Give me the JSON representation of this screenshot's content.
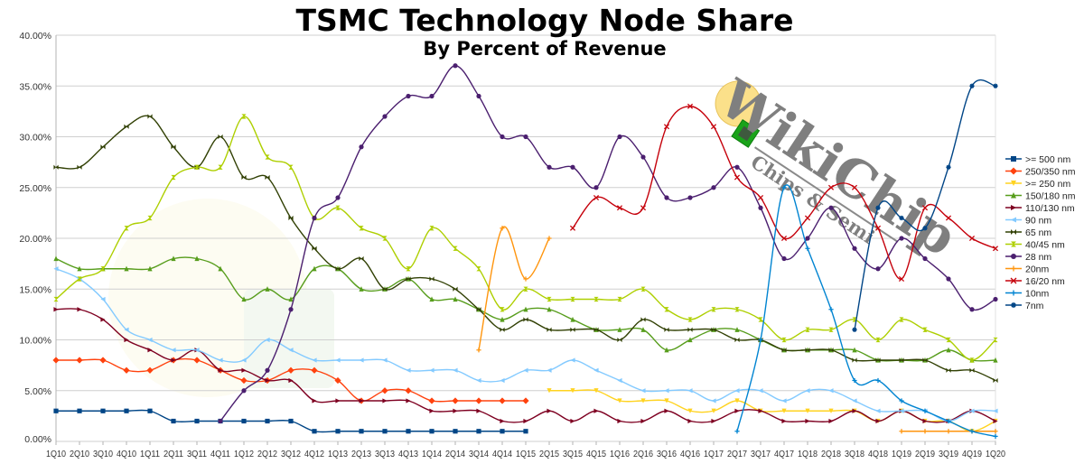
{
  "chart_data": {
    "type": "line",
    "title": "TSMC Technology Node Share",
    "subtitle": "By Percent of Revenue",
    "xlabel": "",
    "ylabel": "",
    "ylim": [
      0,
      40
    ],
    "y_ticks": [
      "0.00%",
      "5.00%",
      "10.00%",
      "15.00%",
      "20.00%",
      "25.00%",
      "30.00%",
      "35.00%",
      "40.00%"
    ],
    "grid": true,
    "smooth": true,
    "legend_position": "right",
    "categories": [
      "1Q10",
      "2Q10",
      "3Q10",
      "4Q10",
      "1Q11",
      "2Q11",
      "3Q11",
      "4Q11",
      "1Q12",
      "2Q12",
      "3Q12",
      "4Q12",
      "1Q13",
      "2Q13",
      "3Q13",
      "4Q13",
      "1Q14",
      "2Q14",
      "3Q14",
      "4Q14",
      "1Q15",
      "2Q15",
      "3Q15",
      "4Q15",
      "1Q16",
      "2Q16",
      "3Q16",
      "4Q16",
      "1Q17",
      "2Q17",
      "3Q17",
      "4Q17",
      "1Q18",
      "2Q18",
      "3Q18",
      "4Q18",
      "1Q19",
      "2Q19",
      "3Q19",
      "4Q19",
      "1Q20"
    ],
    "series": [
      {
        "name": ">= 500 nm",
        "color": "#004586",
        "marker": "square",
        "values": [
          3,
          3,
          3,
          3,
          3,
          2,
          2,
          2,
          2,
          2,
          2,
          1,
          1,
          1,
          1,
          1,
          1,
          1,
          1,
          1,
          1,
          null,
          null,
          null,
          null,
          null,
          null,
          null,
          null,
          null,
          null,
          null,
          null,
          null,
          null,
          null,
          null,
          null,
          null,
          null,
          null
        ]
      },
      {
        "name": "250/350 nm",
        "color": "#ff420e",
        "marker": "diamond",
        "values": [
          8,
          8,
          8,
          7,
          7,
          8,
          8,
          7,
          6,
          6,
          7,
          7,
          6,
          4,
          5,
          5,
          4,
          4,
          4,
          4,
          4,
          null,
          null,
          null,
          null,
          null,
          null,
          null,
          null,
          null,
          null,
          null,
          null,
          null,
          null,
          null,
          null,
          null,
          null,
          null,
          null
        ]
      },
      {
        "name": ">= 250 nm",
        "color": "#ffd320",
        "marker": "triangle-down",
        "values": [
          null,
          null,
          null,
          null,
          null,
          null,
          null,
          null,
          null,
          null,
          null,
          null,
          null,
          null,
          null,
          null,
          null,
          null,
          null,
          null,
          null,
          5,
          5,
          5,
          4,
          4,
          4,
          3,
          3,
          4,
          3,
          3,
          3,
          3,
          3,
          2,
          3,
          2,
          2,
          1,
          2
        ]
      },
      {
        "name": "150/180 nm",
        "color": "#579d1c",
        "marker": "triangle-up",
        "values": [
          18,
          17,
          17,
          17,
          17,
          18,
          18,
          17,
          14,
          15,
          14,
          17,
          17,
          15,
          15,
          16,
          14,
          14,
          13,
          12,
          13,
          13,
          12,
          11,
          11,
          11,
          9,
          10,
          11,
          11,
          10,
          9,
          9,
          9,
          9,
          8,
          8,
          8,
          9,
          8,
          8
        ]
      },
      {
        "name": "110/130 nm",
        "color": "#7e0021",
        "marker": "triangle-right",
        "values": [
          13,
          13,
          12,
          10,
          9,
          8,
          9,
          7,
          7,
          6,
          6,
          4,
          4,
          4,
          4,
          4,
          3,
          3,
          3,
          2,
          2,
          3,
          2,
          3,
          2,
          2,
          3,
          2,
          2,
          3,
          3,
          2,
          2,
          2,
          3,
          2,
          3,
          2,
          2,
          3,
          2
        ]
      },
      {
        "name": "90 nm",
        "color": "#83caff",
        "marker": "triangle-left",
        "values": [
          17,
          16,
          14,
          11,
          10,
          9,
          9,
          8,
          8,
          10,
          9,
          8,
          8,
          8,
          8,
          7,
          7,
          7,
          6,
          6,
          7,
          7,
          8,
          7,
          6,
          5,
          5,
          5,
          4,
          5,
          5,
          4,
          5,
          5,
          4,
          3,
          3,
          3,
          2,
          3,
          3
        ]
      },
      {
        "name": "65 nm",
        "color": "#314004",
        "marker": "bowtie",
        "values": [
          27,
          27,
          29,
          31,
          32,
          29,
          27,
          30,
          26,
          26,
          22,
          19,
          17,
          18,
          15,
          16,
          16,
          15,
          13,
          11,
          12,
          11,
          11,
          11,
          10,
          12,
          11,
          11,
          11,
          10,
          10,
          9,
          9,
          9,
          8,
          8,
          8,
          8,
          7,
          7,
          6
        ]
      },
      {
        "name": "40/45 nm",
        "color": "#aecf00",
        "marker": "hourglass",
        "values": [
          14,
          16,
          17,
          21,
          22,
          26,
          27,
          27,
          32,
          28,
          27,
          22,
          23,
          21,
          20,
          17,
          21,
          19,
          17,
          13,
          15,
          14,
          14,
          14,
          14,
          15,
          13,
          12,
          13,
          13,
          12,
          10,
          11,
          11,
          12,
          10,
          12,
          11,
          10,
          8,
          10
        ]
      },
      {
        "name": "28 nm",
        "color": "#4b1f6f",
        "marker": "circle",
        "values": [
          null,
          null,
          null,
          null,
          null,
          null,
          null,
          2,
          5,
          7,
          13,
          22,
          24,
          29,
          32,
          34,
          34,
          37,
          34,
          30,
          30,
          27,
          27,
          25,
          30,
          28,
          24,
          24,
          25,
          27,
          23,
          18,
          20,
          23,
          19,
          17,
          20,
          18,
          16,
          13,
          14
        ]
      },
      {
        "name": "20nm",
        "color": "#ff950e",
        "marker": "plus",
        "values": [
          null,
          null,
          null,
          null,
          null,
          null,
          null,
          null,
          null,
          null,
          null,
          null,
          null,
          null,
          null,
          null,
          null,
          null,
          9,
          21,
          16,
          20,
          null,
          null,
          null,
          null,
          null,
          null,
          null,
          null,
          null,
          null,
          null,
          null,
          null,
          null,
          1,
          1,
          1,
          1,
          1
        ]
      },
      {
        "name": "16/20 nm",
        "color": "#c5000b",
        "marker": "x",
        "values": [
          null,
          null,
          null,
          null,
          null,
          null,
          null,
          null,
          null,
          null,
          null,
          null,
          null,
          null,
          null,
          null,
          null,
          null,
          null,
          null,
          null,
          null,
          21,
          24,
          23,
          23,
          31,
          33,
          31,
          26,
          24,
          20,
          22,
          25,
          25,
          21,
          16,
          23,
          22,
          20,
          19
        ]
      },
      {
        "name": "10nm",
        "color": "#0084d1",
        "marker": "plus",
        "values": [
          null,
          null,
          null,
          null,
          null,
          null,
          null,
          null,
          null,
          null,
          null,
          null,
          null,
          null,
          null,
          null,
          null,
          null,
          null,
          null,
          null,
          null,
          null,
          null,
          null,
          null,
          null,
          null,
          null,
          1,
          10,
          25,
          19,
          13,
          6,
          6,
          4,
          3,
          2,
          1,
          0.5
        ]
      },
      {
        "name": "7nm",
        "color": "#004586",
        "marker": "star",
        "values": [
          null,
          null,
          null,
          null,
          null,
          null,
          null,
          null,
          null,
          null,
          null,
          null,
          null,
          null,
          null,
          null,
          null,
          null,
          null,
          null,
          null,
          null,
          null,
          null,
          null,
          null,
          null,
          null,
          null,
          null,
          null,
          null,
          null,
          null,
          11,
          23,
          22,
          21,
          27,
          35,
          35
        ]
      }
    ]
  },
  "logo": {
    "name": "WikiChip",
    "tagline": "Chips & Semi"
  }
}
